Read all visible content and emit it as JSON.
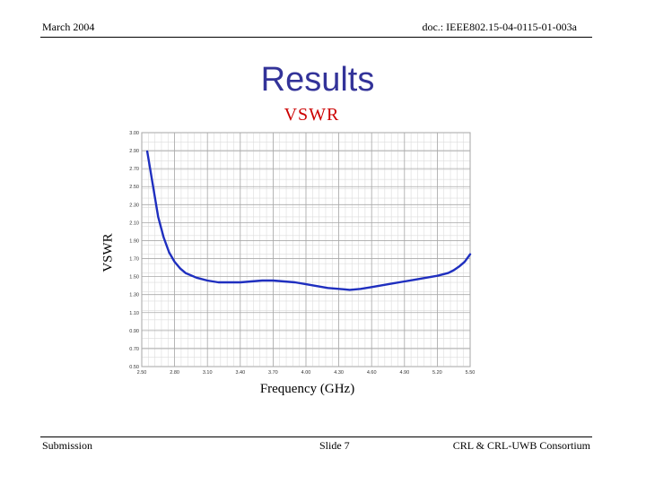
{
  "header": {
    "date": "March 2004",
    "doc": "doc.: IEEE802.15-04-0115-01-003a"
  },
  "slide": {
    "title": "Results",
    "subtitle": "VSWR"
  },
  "footer": {
    "left": "Submission",
    "center": "Slide 7",
    "right": "CRL & CRL-UWB Consortium"
  },
  "chart_data": {
    "type": "line",
    "title": "VSWR",
    "xlabel": "Frequency (GHz)",
    "ylabel": "VSWR",
    "xlim": [
      2.5,
      5.5
    ],
    "ylim": [
      0.5,
      3.0
    ],
    "x_ticks": [
      "2.50",
      "2.80",
      "3.10",
      "3.40",
      "3.70",
      "4.00",
      "4.30",
      "4.60",
      "4.90",
      "5.20",
      "5.50"
    ],
    "y_ticks": [
      "0.50",
      "0.70",
      "0.90",
      "1.10",
      "1.30",
      "1.50",
      "1.70",
      "1.90",
      "2.10",
      "2.30",
      "2.50",
      "2.70",
      "2.90",
      "3.00"
    ],
    "grid": true,
    "color": "#1f2fbf",
    "series": [
      {
        "x": [
          2.55,
          2.6,
          2.65,
          2.7,
          2.75,
          2.8,
          2.85,
          2.9,
          3.0,
          3.1,
          3.2,
          3.3,
          3.4,
          3.5,
          3.6,
          3.7,
          3.8,
          3.9,
          4.0,
          4.1,
          4.2,
          4.3,
          4.4,
          4.5,
          4.6,
          4.7,
          4.8,
          4.9,
          5.0,
          5.1,
          5.2,
          5.3,
          5.35,
          5.4,
          5.45,
          5.5
        ],
        "y": [
          2.8,
          2.45,
          2.1,
          1.88,
          1.72,
          1.62,
          1.55,
          1.5,
          1.45,
          1.42,
          1.4,
          1.4,
          1.4,
          1.41,
          1.42,
          1.42,
          1.41,
          1.4,
          1.38,
          1.36,
          1.34,
          1.33,
          1.32,
          1.33,
          1.35,
          1.37,
          1.39,
          1.41,
          1.43,
          1.45,
          1.47,
          1.5,
          1.53,
          1.57,
          1.62,
          1.7
        ]
      }
    ]
  }
}
